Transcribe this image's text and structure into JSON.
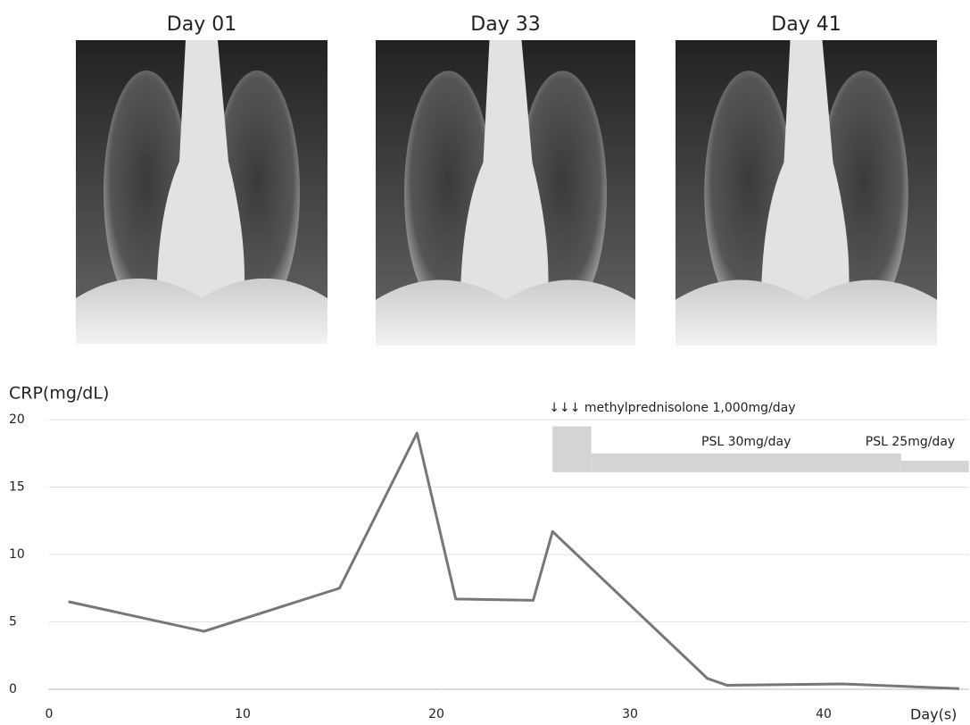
{
  "images": [
    {
      "title": "Day 01"
    },
    {
      "title": "Day 33"
    },
    {
      "title": "Day 41"
    }
  ],
  "chart_data": {
    "type": "line",
    "y_label": "CRP(mg/dL)",
    "x_label": "Day(s)",
    "x": [
      1,
      8,
      15,
      19,
      21,
      25,
      26,
      34,
      35,
      41,
      47
    ],
    "values": [
      6.5,
      4.3,
      7.5,
      19,
      6.7,
      6.6,
      11.7,
      0.8,
      0.3,
      0.4,
      0.05
    ],
    "color": "#777777",
    "xlim": [
      0,
      47.5
    ],
    "xticks": [
      0,
      10,
      20,
      30,
      40
    ],
    "ylim": [
      0,
      20
    ],
    "yticks": [
      0,
      5,
      10,
      15,
      20
    ],
    "grid": true,
    "treatments": [
      {
        "label": "↓↓↓ methylprednisolone 1,000mg/day",
        "start": 26,
        "end": 28,
        "top": 19.5,
        "bottom": 16.1
      },
      {
        "label": "PSL 30mg/day",
        "start": 28,
        "end": 44,
        "top": 17.5,
        "bottom": 16.1
      },
      {
        "label": "PSL 25mg/day",
        "start": 44,
        "end": 47.5,
        "top": 16.95,
        "bottom": 16.1
      }
    ],
    "treatment_color": "#d4d4d4"
  }
}
